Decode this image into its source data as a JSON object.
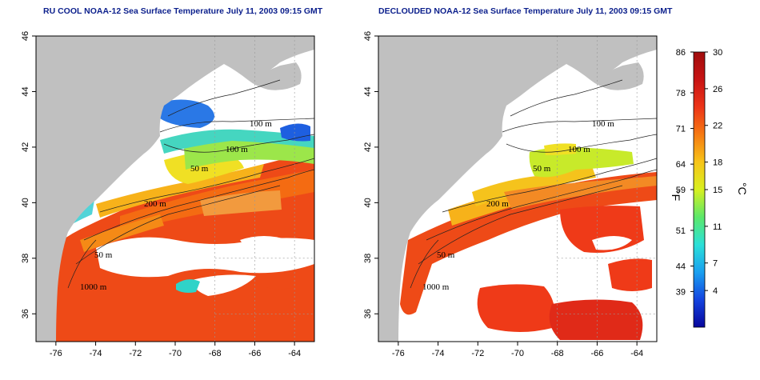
{
  "panels": [
    {
      "title": "RU COOL NOAA-12 Sea Surface Temperature July 11, 2003 09:15 GMT",
      "mode": "cloudy"
    },
    {
      "title": "DECLOUDED NOAA-12 Sea Surface Temperature July 11, 2003 09:15 GMT",
      "mode": "declouded"
    }
  ],
  "axes": {
    "x_ticks": [
      "-76",
      "-74",
      "-72",
      "-70",
      "-68",
      "-66",
      "-64"
    ],
    "y_ticks": [
      "36",
      "38",
      "40",
      "42",
      "44",
      "46"
    ]
  },
  "isobaths": {
    "left": [
      "100 m",
      "100 m",
      "50 m",
      "200 m",
      "50 m",
      "1000 m"
    ],
    "right": [
      "100 m",
      "100 m",
      "50 m",
      "200 m",
      "50 m",
      "1000 m"
    ]
  },
  "colorbar": {
    "fahrenheit_ticks": [
      "86",
      "78",
      "71",
      "64",
      "59",
      "51",
      "44",
      "39"
    ],
    "celsius_ticks": [
      "30",
      "26",
      "22",
      "18",
      "15",
      "11",
      "7",
      "4"
    ],
    "f_unit": "°F",
    "c_unit": "°C",
    "colors": [
      "#08069c",
      "#1444e0",
      "#1aa0f0",
      "#2be0d8",
      "#5ce86a",
      "#d8f020",
      "#f7c418",
      "#f67a12",
      "#ec3418",
      "#c81414",
      "#a00c0c"
    ]
  },
  "map_colors": {
    "land": "#c0c0c0",
    "water_cloud": "#ffffff",
    "grid": "#999999"
  }
}
